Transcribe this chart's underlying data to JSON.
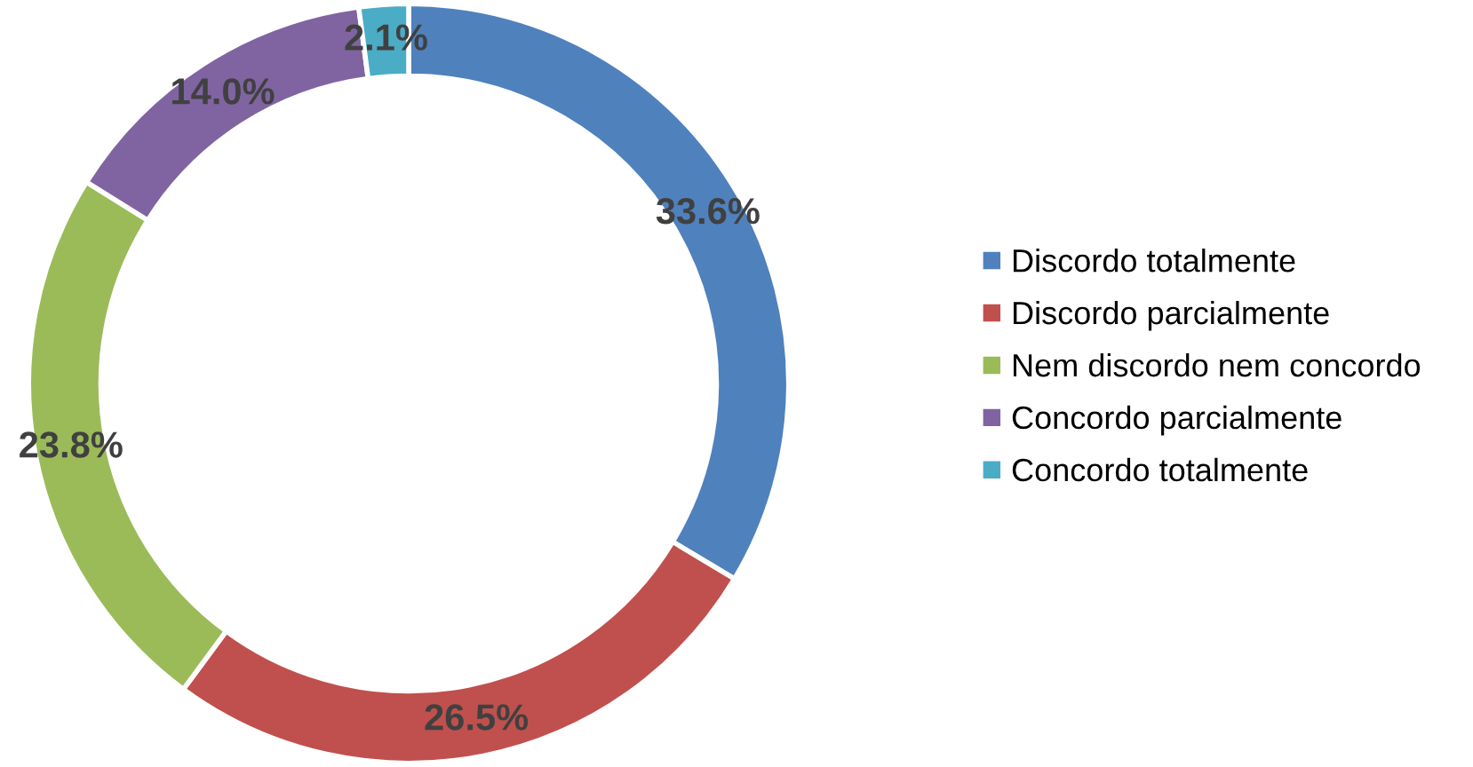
{
  "chart_data": {
    "type": "donut",
    "categories": [
      "Discordo totalmente",
      "Discordo parcialmente",
      "Nem discordo nem concordo",
      "Concordo parcialmente",
      "Concordo totalmente"
    ],
    "values": [
      33.6,
      26.5,
      23.8,
      14.0,
      2.1
    ],
    "colors": [
      "#4f81bd",
      "#c0504d",
      "#9bbb59",
      "#8064a2",
      "#4bacc6"
    ],
    "value_labels": [
      "33.6%",
      "26.5%",
      "23.8%",
      "14.0%",
      "2.1%"
    ],
    "legend": "right"
  }
}
